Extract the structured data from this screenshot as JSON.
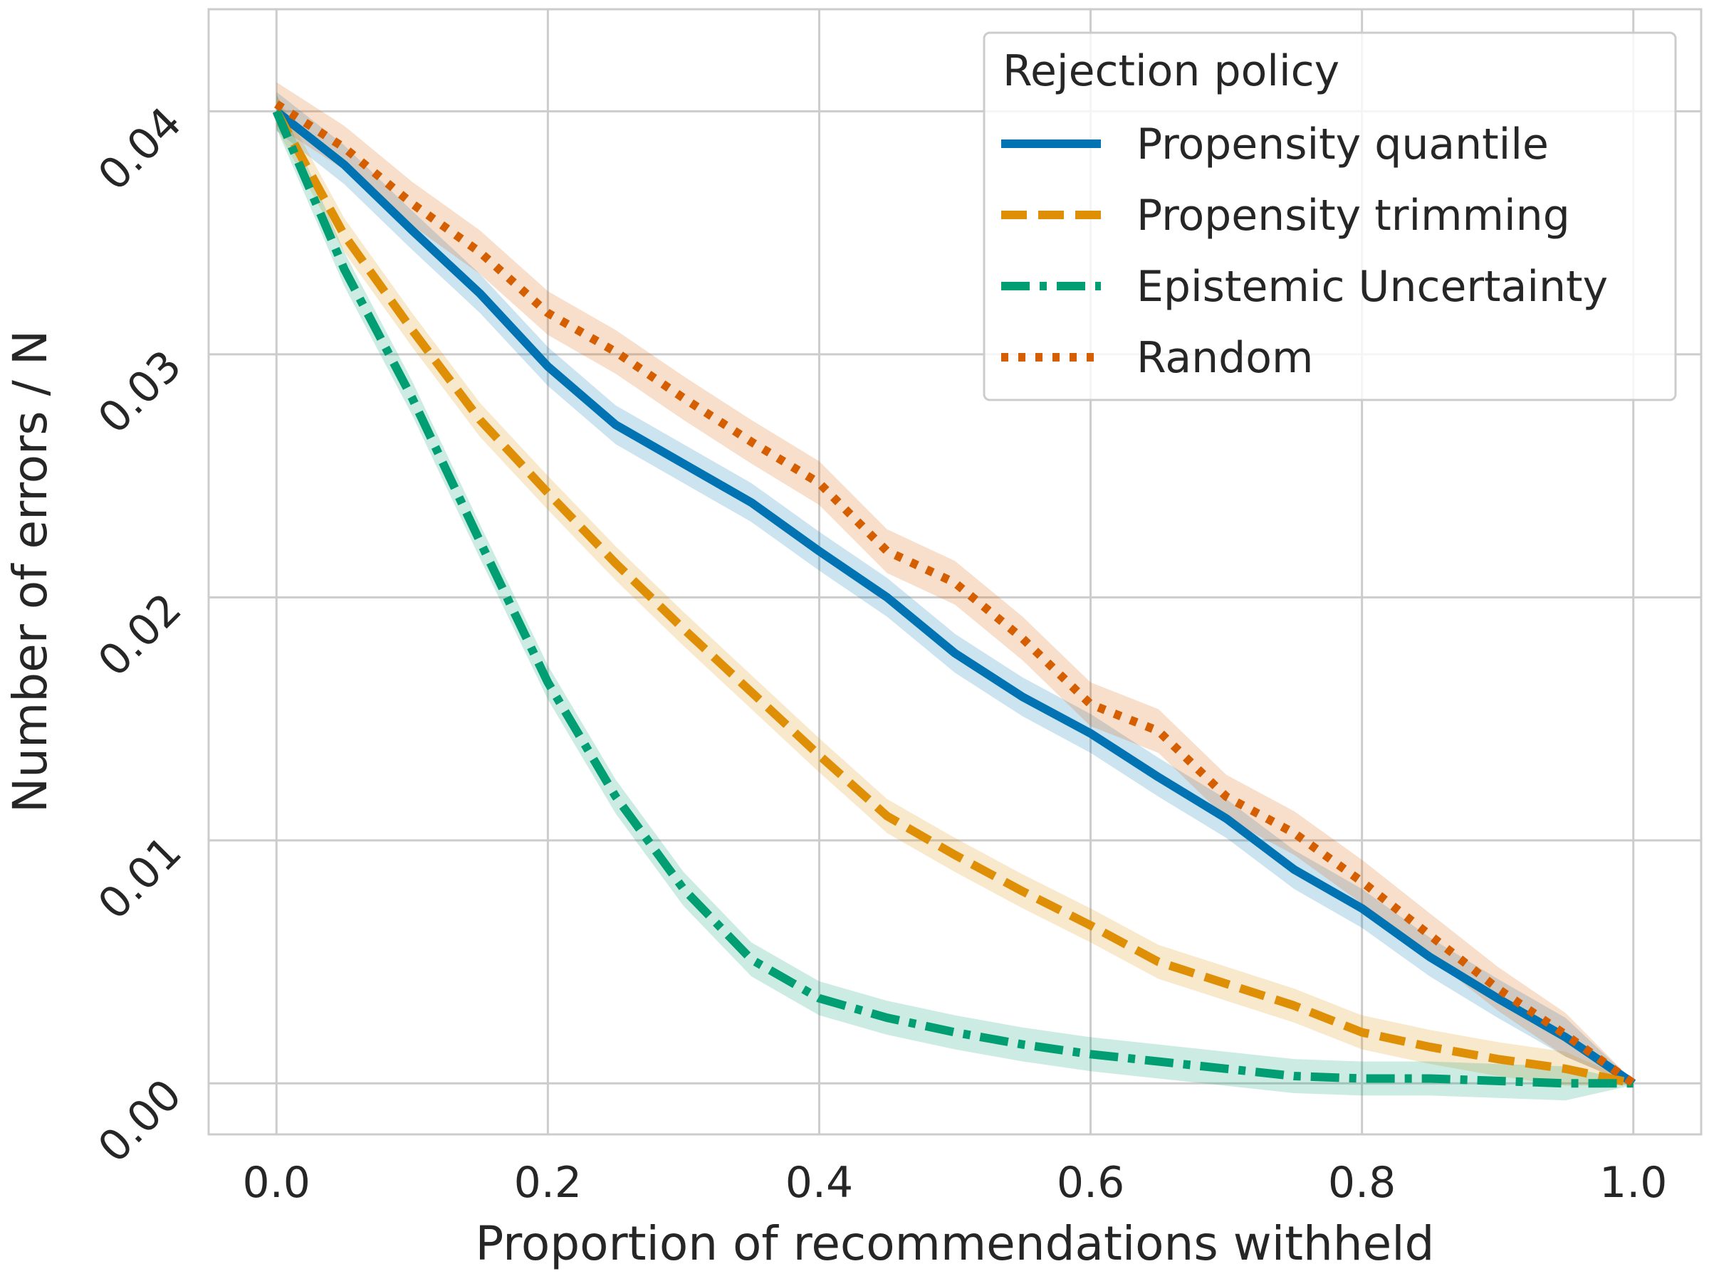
{
  "chart_data": {
    "type": "line",
    "title": "",
    "xlabel": "Proportion of recommendations withheld",
    "ylabel": "Number of errors / N",
    "xlim": [
      -0.05,
      1.05
    ],
    "ylim": [
      -0.0021,
      0.0442
    ],
    "grid": true,
    "x_ticks": [
      0.0,
      0.2,
      0.4,
      0.6,
      0.8,
      1.0
    ],
    "x_tick_labels": [
      "0.0",
      "0.2",
      "0.4",
      "0.6",
      "0.8",
      "1.0"
    ],
    "y_ticks": [
      0.0,
      0.01,
      0.02,
      0.03,
      0.04
    ],
    "y_tick_labels": [
      "0.00",
      "0.01",
      "0.02",
      "0.03",
      "0.04"
    ],
    "legend": {
      "title": "Rejection policy",
      "position": "top-right"
    },
    "x": [
      0.0,
      0.05,
      0.1,
      0.15,
      0.2,
      0.25,
      0.3,
      0.35,
      0.4,
      0.45,
      0.5,
      0.55,
      0.6,
      0.65,
      0.7,
      0.75,
      0.8,
      0.85,
      0.9,
      0.95,
      1.0
    ],
    "series": [
      {
        "name": "Propensity quantile",
        "style": "solid",
        "color": "#0173b2",
        "values": [
          0.04,
          0.0378,
          0.0351,
          0.0325,
          0.0295,
          0.0271,
          0.0255,
          0.0239,
          0.0219,
          0.02,
          0.0177,
          0.0159,
          0.0144,
          0.0126,
          0.0109,
          0.0088,
          0.0072,
          0.0052,
          0.0035,
          0.0019,
          0.0
        ],
        "band": 0.0008
      },
      {
        "name": "Propensity trimming",
        "style": "dashed",
        "color": "#de8f05",
        "values": [
          0.04,
          0.0349,
          0.031,
          0.0273,
          0.0243,
          0.0214,
          0.0187,
          0.0161,
          0.0135,
          0.011,
          0.0094,
          0.0079,
          0.0065,
          0.005,
          0.0041,
          0.0032,
          0.0021,
          0.0015,
          0.001,
          0.0006,
          0.0
        ],
        "band": 0.0007
      },
      {
        "name": "Epistemic Uncertainty",
        "style": "dashdot",
        "color": "#029e73",
        "values": [
          0.04,
          0.0335,
          0.0282,
          0.0223,
          0.0165,
          0.0118,
          0.008,
          0.0051,
          0.0035,
          0.0027,
          0.0021,
          0.0016,
          0.0012,
          0.0009,
          0.0006,
          0.0003,
          0.0002,
          0.0002,
          0.0001,
          0.0,
          0.0
        ],
        "band": 0.0007
      },
      {
        "name": "Random",
        "style": "dotted",
        "color": "#d55e00",
        "values": [
          0.0403,
          0.0385,
          0.0362,
          0.0342,
          0.0317,
          0.0301,
          0.0282,
          0.0264,
          0.0247,
          0.0219,
          0.0206,
          0.0183,
          0.0156,
          0.0145,
          0.0118,
          0.0103,
          0.0083,
          0.0061,
          0.0039,
          0.002,
          0.0
        ],
        "band": 0.0009
      }
    ]
  }
}
